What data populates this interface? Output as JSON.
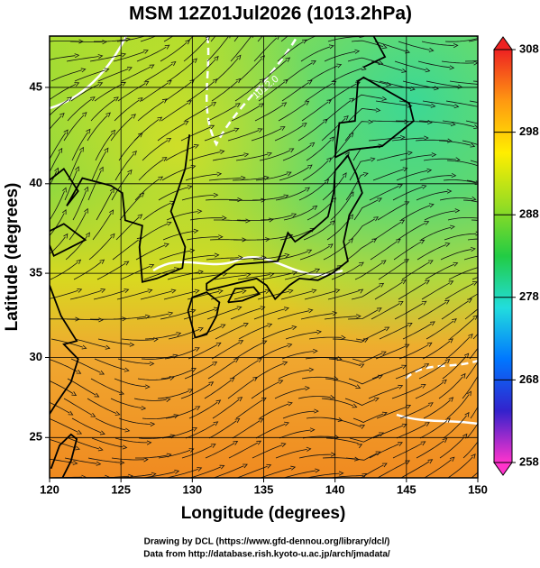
{
  "chart_data": {
    "type": "map",
    "title": "MSM 12Z01Jul2026 (1013.2hPa)",
    "x_label": "Longitude (degrees)",
    "y_label": "Latitude  (degrees)",
    "projection": "mercator",
    "xlim": [
      120,
      150
    ],
    "xticks": [
      120,
      125,
      130,
      135,
      140,
      145,
      150
    ],
    "ylim": [
      22.4,
      47.5
    ],
    "yticks": [
      25,
      30,
      35,
      40,
      45
    ],
    "grid": true,
    "contour_labels": [
      "1012.0"
    ],
    "colorbar": {
      "lim": [
        258,
        308
      ],
      "ticks": [
        258,
        268,
        278,
        288,
        298,
        308
      ],
      "colors": [
        "#ff33cc",
        "#3322cc",
        "#0077ff",
        "#22dddd",
        "#22cc44",
        "#99dd22",
        "#ffee00",
        "#ff9911",
        "#ee2222"
      ]
    },
    "credits": [
      "Drawing by DCL (https://www.gfd-dennou.org/library/dcl/)",
      "Data from http://database.rish.kyoto-u.ac.jp/arch/jmadata/"
    ]
  }
}
